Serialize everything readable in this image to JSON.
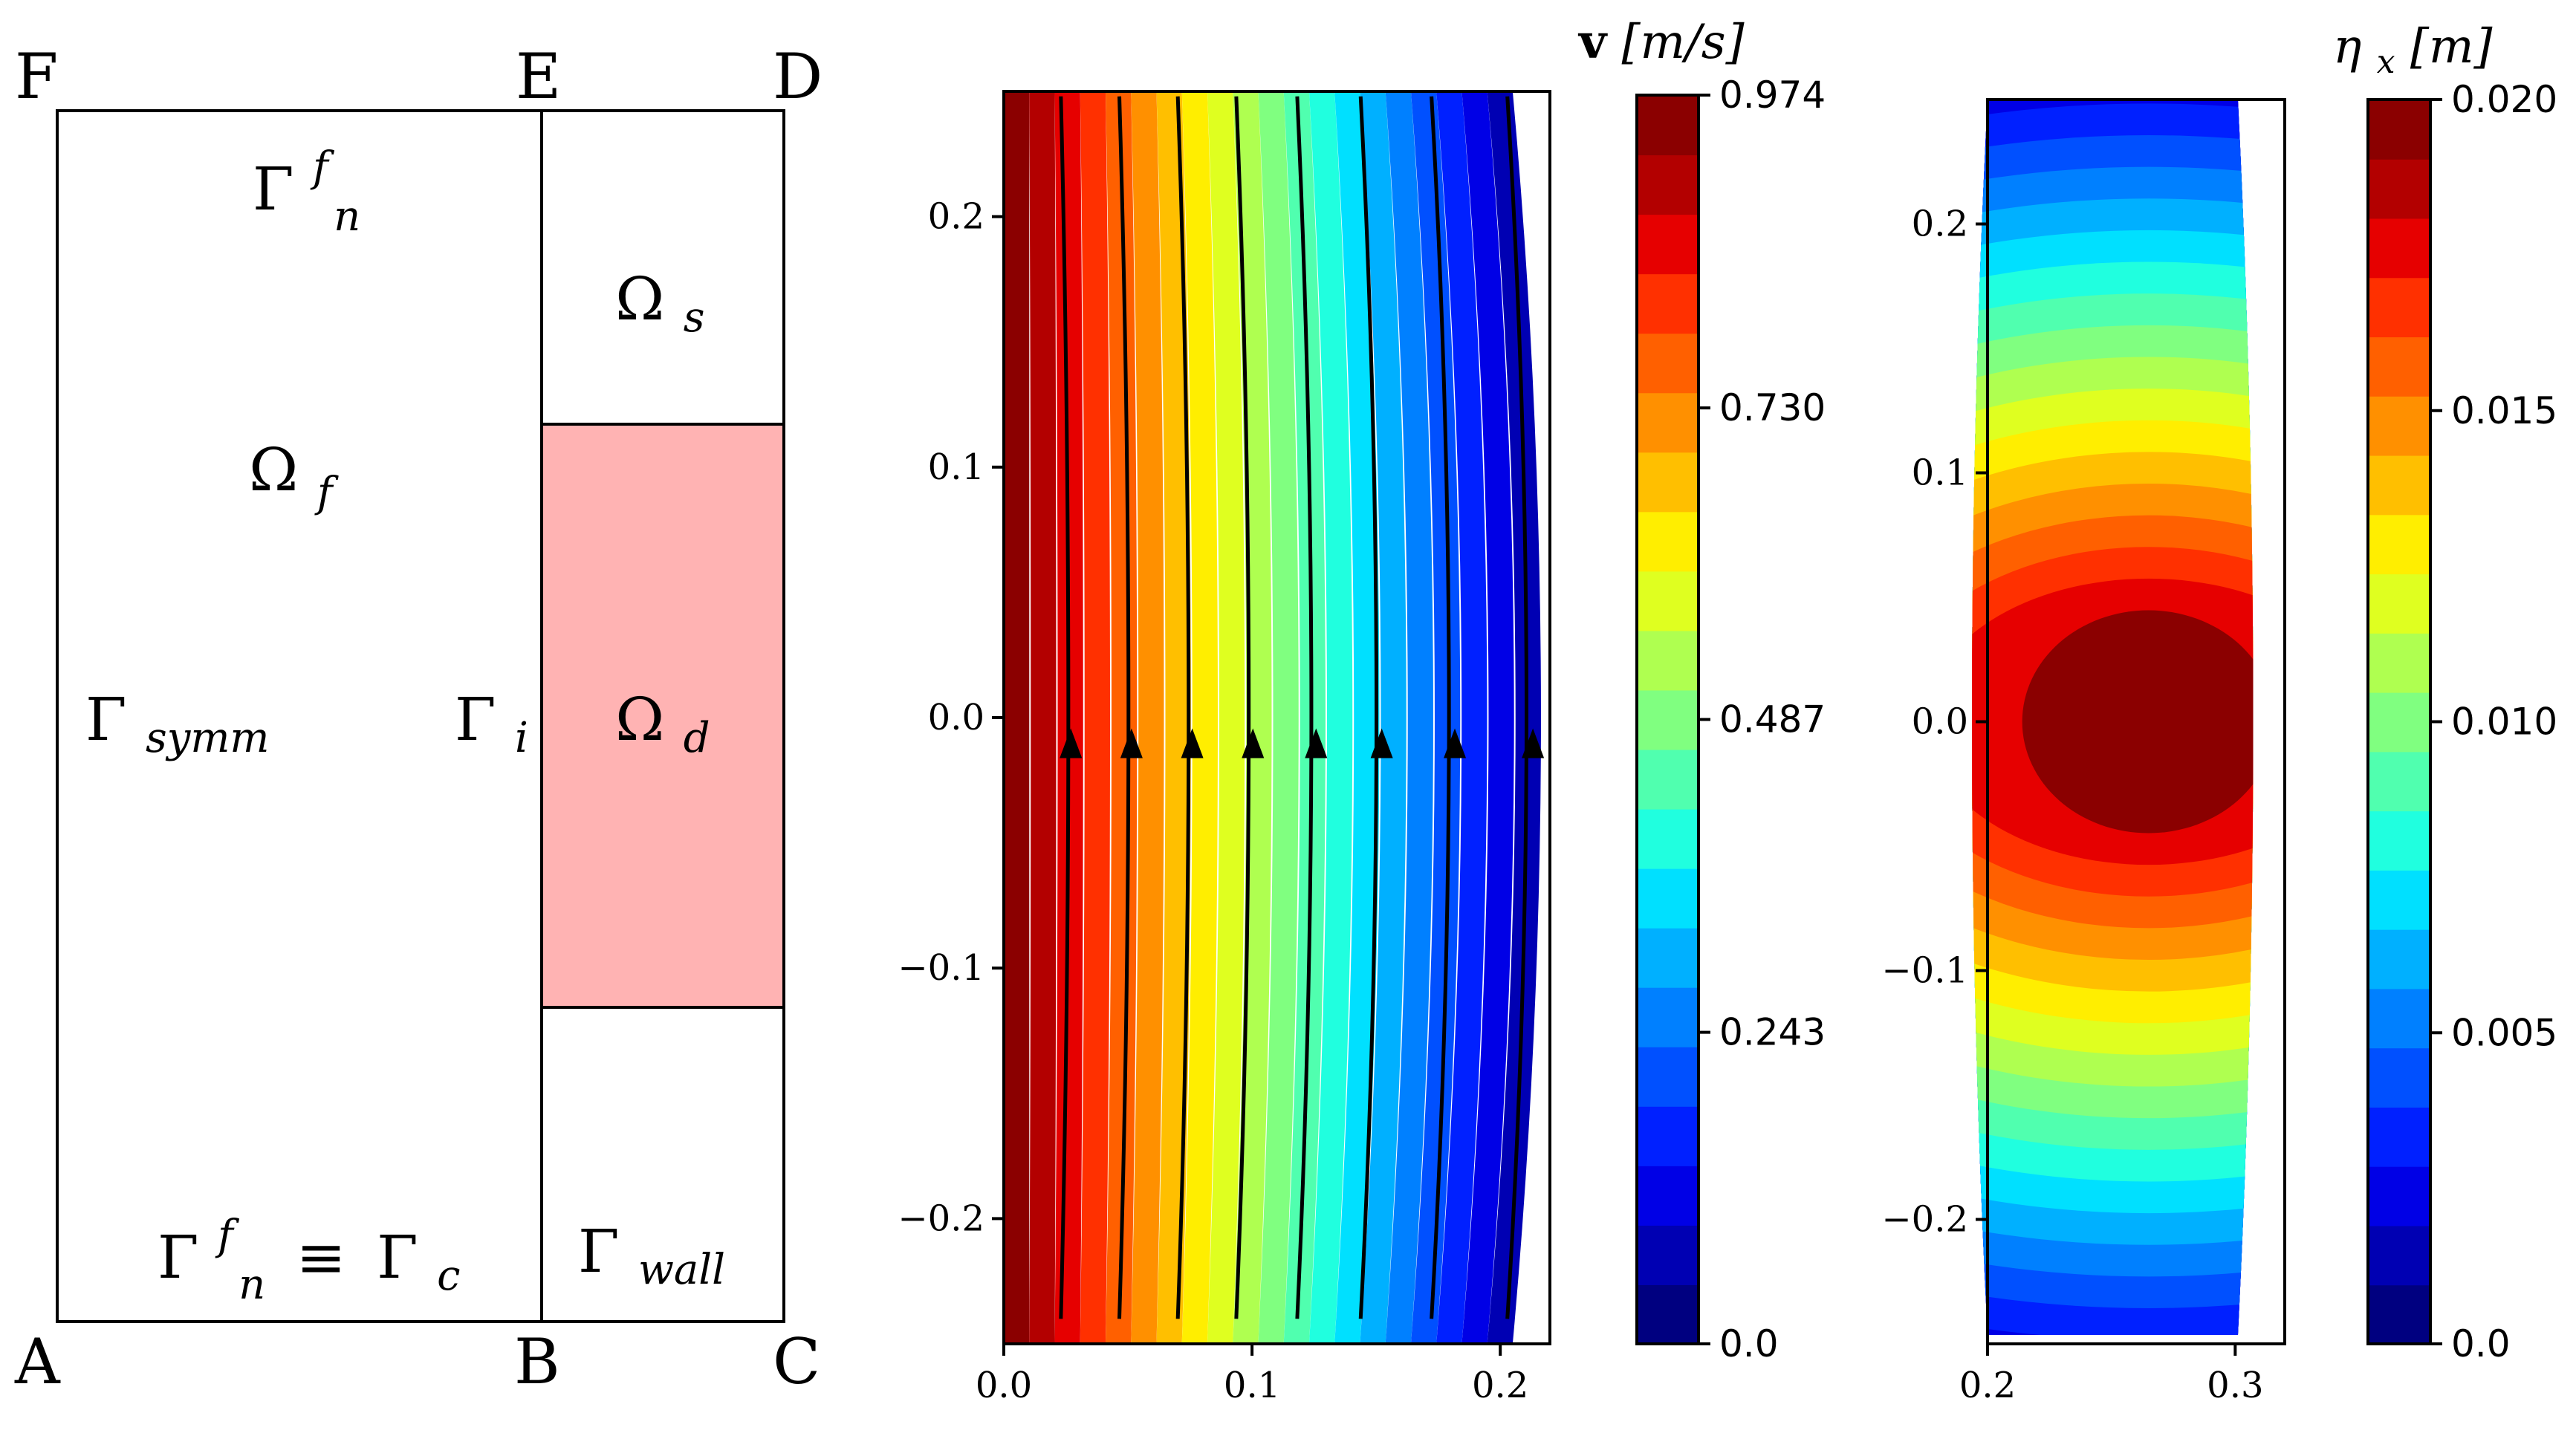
{
  "panel_a": {
    "corners": [
      "A",
      "B",
      "C",
      "D",
      "E",
      "F"
    ],
    "regions": {
      "omega_f": {
        "base": "Ω",
        "sub": "f"
      },
      "omega_s": {
        "base": "Ω",
        "sub": "s"
      },
      "omega_d": {
        "base": "Ω",
        "sub": "d"
      },
      "gamma_symm": {
        "base": "Γ",
        "sub": "symm"
      },
      "gamma_i": {
        "base": "Γ",
        "sub": "i"
      },
      "gamma_wall": {
        "base": "Γ",
        "sub": "wall"
      },
      "gamma_nf_top": {
        "base": "Γ",
        "sup": "f",
        "sub": "n"
      },
      "gamma_nf_bottom": {
        "base": "Γ",
        "sup": "f",
        "sub": "n",
        "equiv": "≡",
        "base2": "Γ",
        "sub2": "c"
      }
    },
    "colors": {
      "omega_d_fill": "#ffb3b3"
    }
  },
  "chart_data": [
    {
      "type": "contour",
      "field": "velocity magnitude with streamlines",
      "colorbar_label": {
        "bold": "v",
        "units": "[m/s]"
      },
      "xlim": [
        0.0,
        0.22
      ],
      "ylim": [
        -0.25,
        0.25
      ],
      "xticks": [
        "0.0",
        "0.1",
        "0.2"
      ],
      "yticks": [
        "−0.2",
        "−0.1",
        "0.0",
        "0.1",
        "0.2"
      ],
      "colorbar_ticks": [
        "0.974",
        "0.730",
        "0.487",
        "0.243",
        "0.0"
      ],
      "colorbar_range": [
        0.0,
        0.974
      ],
      "levels": 20,
      "streamline_x": [
        0.025,
        0.049,
        0.073,
        0.097,
        0.122,
        0.148,
        0.177,
        0.208
      ],
      "streamline_direction": "upward"
    },
    {
      "type": "contour",
      "field": "displacement x-component",
      "colorbar_label": {
        "base": "η",
        "sub": "x",
        "units": "[m]"
      },
      "xlim": [
        0.2,
        0.32
      ],
      "ylim": [
        -0.25,
        0.25
      ],
      "xticks": [
        "0.2",
        "0.3"
      ],
      "yticks": [
        "−0.2",
        "−0.1",
        "0.0",
        "0.1",
        "0.2"
      ],
      "colorbar_ticks": [
        "0.020",
        "0.015",
        "0.010",
        "0.005",
        "0.0"
      ],
      "colorbar_range": [
        0.0,
        0.02
      ],
      "levels": 19,
      "peak_location": [
        0.265,
        0.0
      ]
    }
  ],
  "colormap": [
    "#000080",
    "#0000b3",
    "#0000e6",
    "#0020ff",
    "#0050ff",
    "#0080ff",
    "#00b0ff",
    "#00e0ff",
    "#20ffdf",
    "#50ffaf",
    "#80ff80",
    "#afff50",
    "#dfff20",
    "#ffee00",
    "#ffbf00",
    "#ff9000",
    "#ff6000",
    "#ff3000",
    "#e60000",
    "#b30000",
    "#8b0000"
  ]
}
